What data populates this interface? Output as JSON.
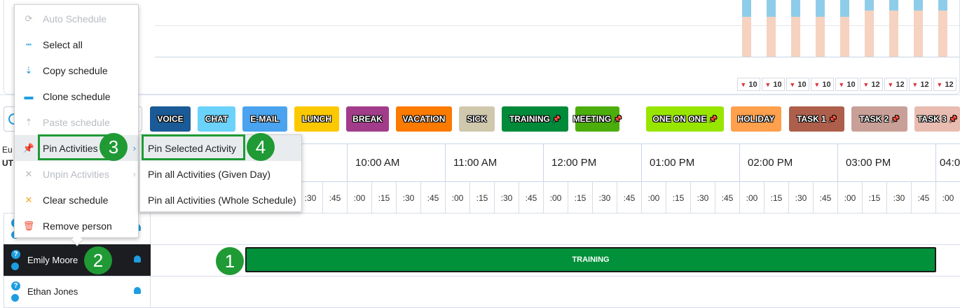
{
  "chart": {
    "bars": [
      {
        "badge": "10",
        "blue_top_level": 0.7
      },
      {
        "badge": "10",
        "blue_top_level": 0.7
      },
      {
        "badge": "10",
        "blue_top_level": 0.7
      },
      {
        "badge": "10",
        "blue_top_level": 0.7
      },
      {
        "badge": "10",
        "blue_top_level": 0.7
      },
      {
        "badge": "12",
        "blue_top_level": 0.83
      },
      {
        "badge": "12",
        "blue_top_level": 0.83
      },
      {
        "badge": "12",
        "blue_top_level": 0.83
      },
      {
        "badge": "12",
        "blue_top_level": 0.83
      }
    ],
    "colors": {
      "blue": "#8ecdea",
      "peach": "#f6d2c0"
    }
  },
  "left_panel": {
    "timezone_line1": "Eu",
    "timezone_line2": "UT"
  },
  "activities": [
    {
      "label": "VOICE",
      "color": "#1a5a96",
      "pinned": false
    },
    {
      "label": "CHAT",
      "color": "#6ad2fb",
      "pinned": false
    },
    {
      "label": "E-MAIL",
      "color": "#4aa3ee",
      "pinned": false
    },
    {
      "label": "LUNCH",
      "color": "#fcc800",
      "pinned": false
    },
    {
      "label": "BREAK",
      "color": "#a23c8a",
      "pinned": false
    },
    {
      "label": "VACATION",
      "color": "#fb7a00",
      "pinned": false
    },
    {
      "label": "SICK",
      "color": "#d0c8ad",
      "pinned": false
    },
    {
      "label": "TRAINING",
      "color": "#008a3a",
      "pinned": true
    },
    {
      "label": "MEETING",
      "color": "#4cae0c",
      "pinned": true
    },
    {
      "label": "ONE ON ONE",
      "color": "#98e600",
      "pinned": true
    },
    {
      "label": "HOLIDAY",
      "color": "#ffa04c",
      "pinned": false
    },
    {
      "label": "TASK 1",
      "color": "#ad5f4b",
      "pinned": true
    },
    {
      "label": "TASK 2",
      "color": "#c9a097",
      "pinned": true
    },
    {
      "label": "TASK 3",
      "color": "#e8bcb0",
      "pinned": true
    }
  ],
  "timeline": {
    "hours": [
      "10:00 AM",
      "11:00 AM",
      "12:00 PM",
      "01:00 PM",
      "02:00 PM",
      "03:00 PM",
      "04:0"
    ],
    "quarters": [
      ":00",
      ":15",
      ":30",
      ":45"
    ]
  },
  "people": [
    {
      "name": "",
      "selected": false
    },
    {
      "name": "Emily Moore",
      "selected": true
    },
    {
      "name": "Ethan Jones",
      "selected": false
    }
  ],
  "schedule_block": {
    "label": "TRAINING",
    "color": "#00913a"
  },
  "context_menu": {
    "items": [
      {
        "label": "Auto Schedule",
        "icon": "auto-schedule-icon",
        "disabled": true
      },
      {
        "label": "Select all",
        "icon": "select-all-icon",
        "disabled": false
      },
      {
        "label": "Copy schedule",
        "icon": "copy-icon",
        "disabled": false
      },
      {
        "label": "Clone schedule",
        "icon": "clone-icon",
        "disabled": false
      },
      {
        "label": "Paste schedule",
        "icon": "paste-icon",
        "disabled": true
      },
      {
        "label": "Pin Activities",
        "icon": "pin-icon",
        "disabled": false,
        "submenu": true
      },
      {
        "label": "Unpin Activities",
        "icon": "unpin-icon",
        "disabled": true,
        "submenu": true
      },
      {
        "label": "Clear schedule",
        "icon": "x-icon",
        "disabled": false
      },
      {
        "label": "Remove person",
        "icon": "trash-icon",
        "disabled": false
      }
    ]
  },
  "submenu": {
    "items": [
      "Pin Selected Activity",
      "Pin all Activities (Given Day)",
      "Pin all Activities (Whole Schedule)"
    ]
  },
  "callouts": [
    "1",
    "2",
    "3",
    "4"
  ]
}
